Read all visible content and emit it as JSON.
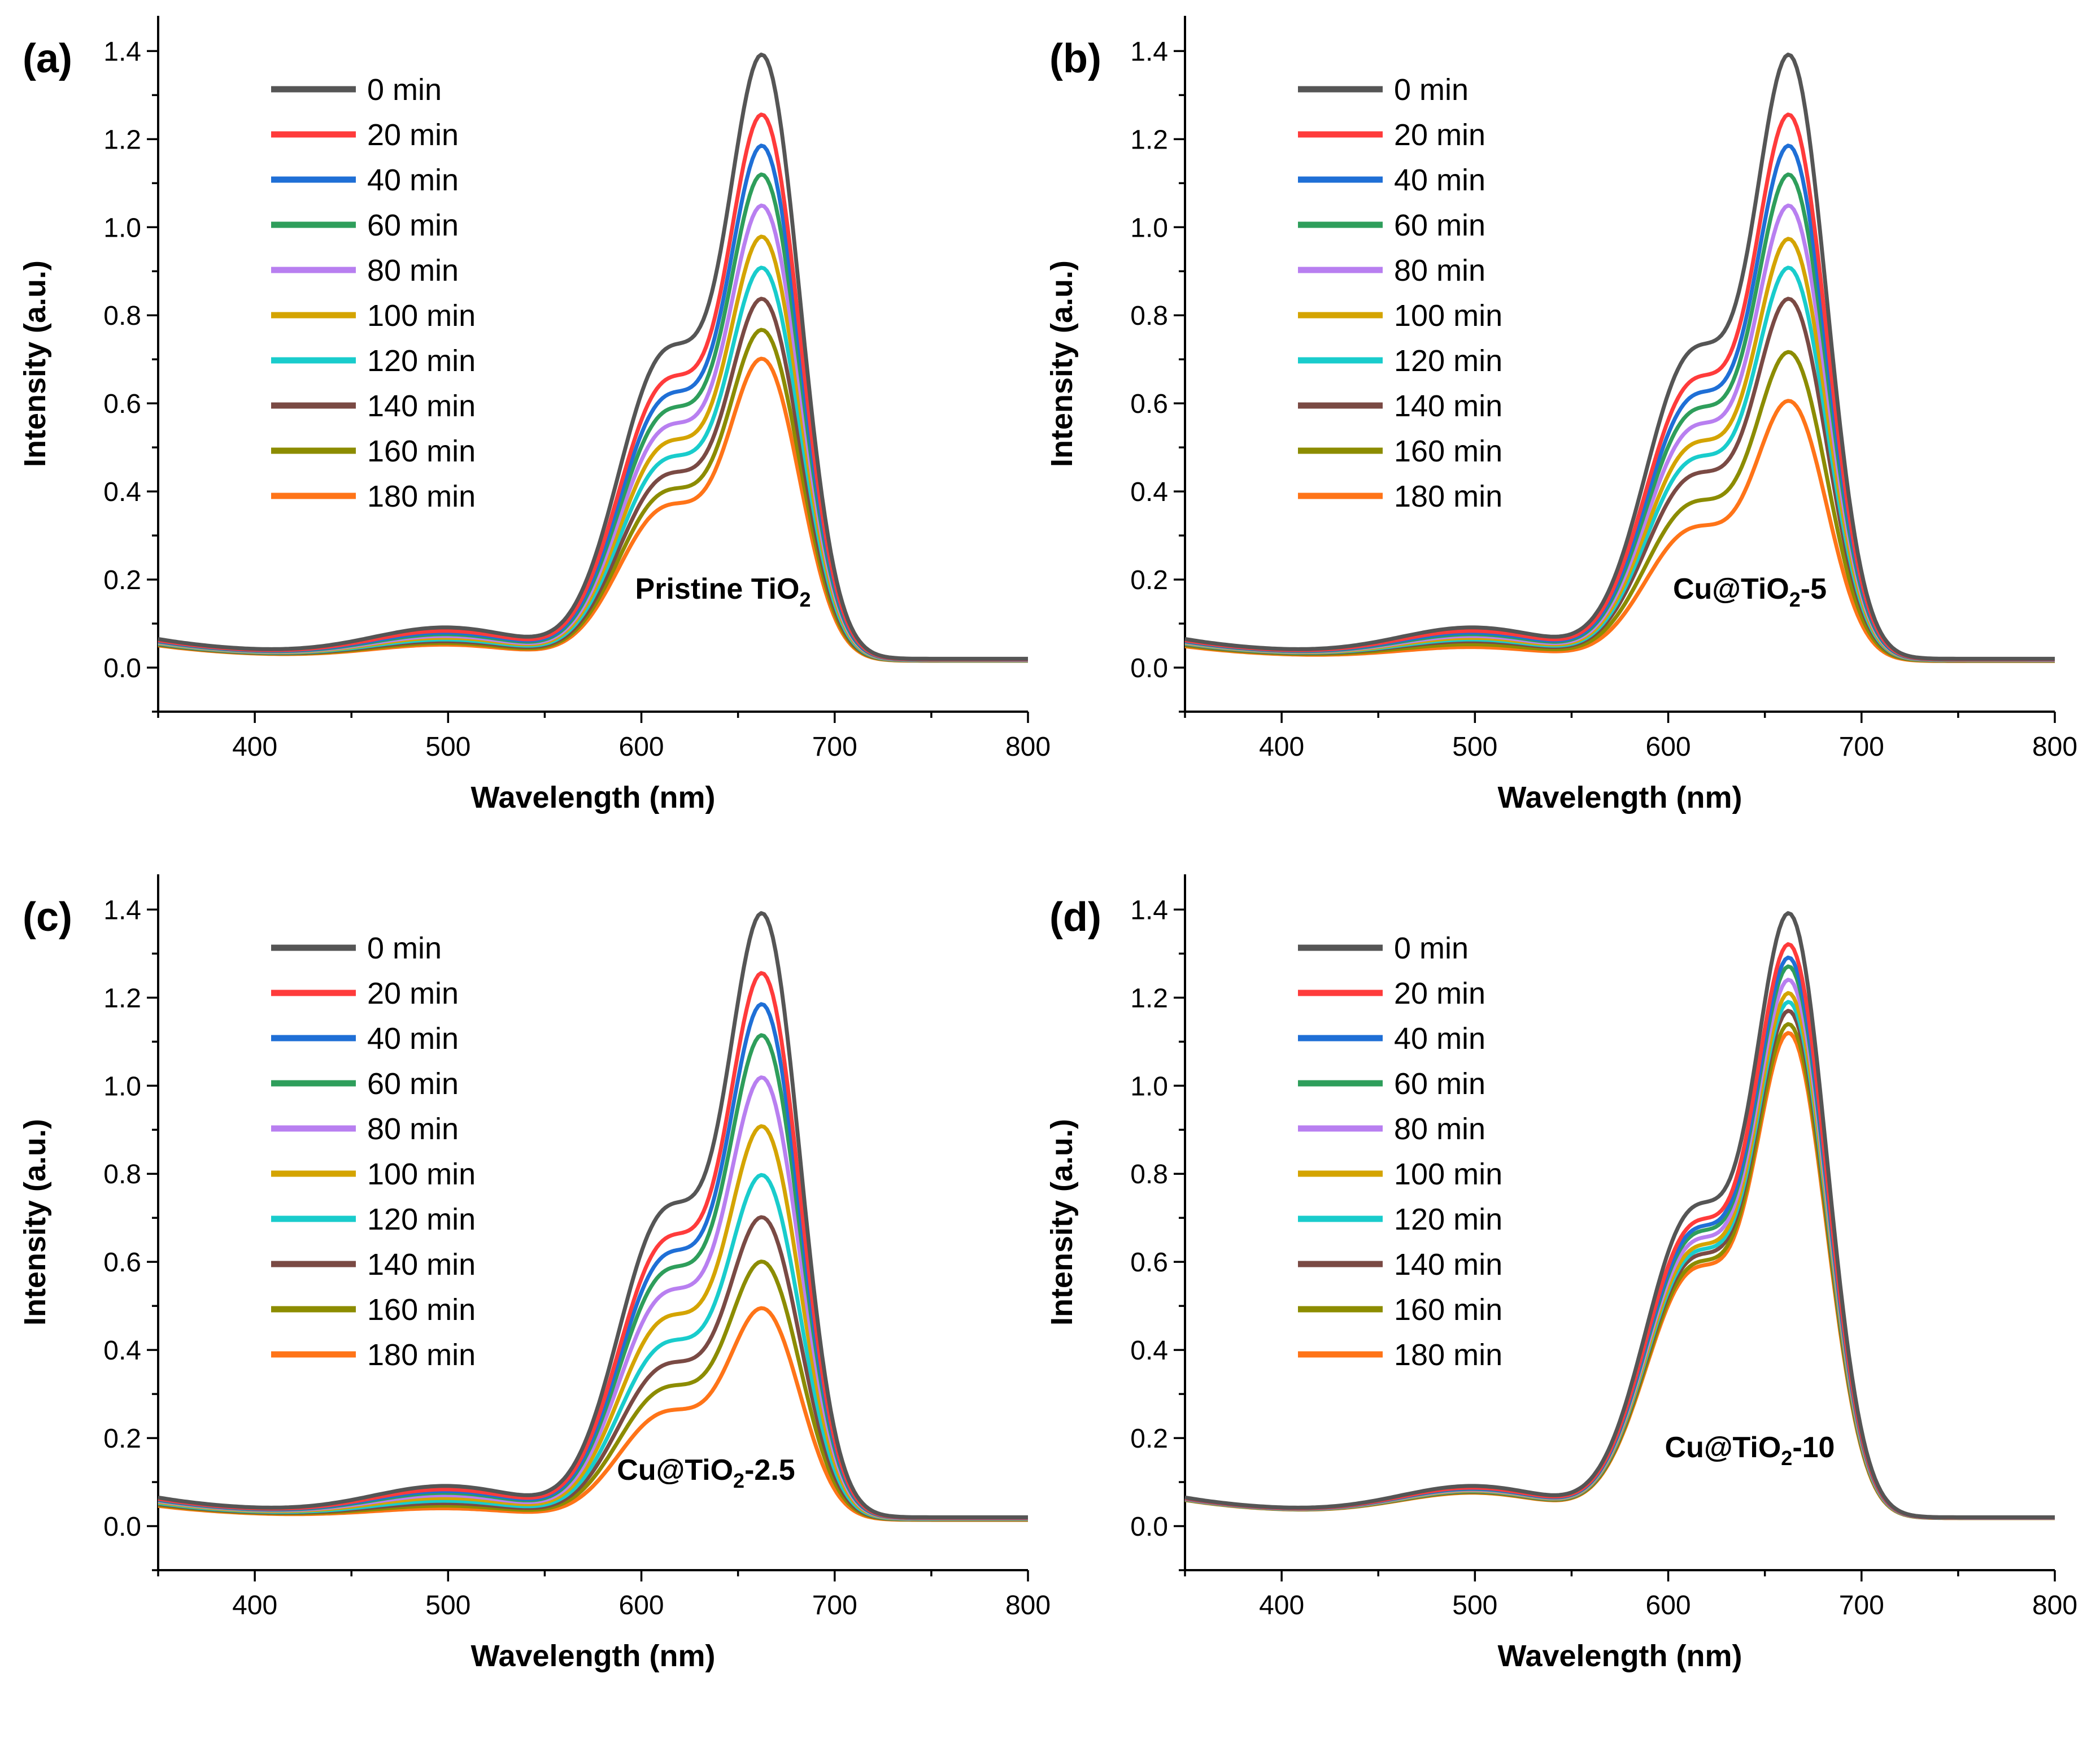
{
  "figure": {
    "x_label": "Wavelength (nm)",
    "y_label": "Intensity (a.u.)",
    "legend_entries": [
      "0 min",
      "20 min",
      "40 min",
      "60 min",
      "80 min",
      "100 min",
      "120 min",
      "140 min",
      "160 min",
      "180 min"
    ],
    "series_colors": [
      "#555555",
      "#ff3b3b",
      "#1f6fd6",
      "#2e9e5b",
      "#b87ff0",
      "#d4a400",
      "#19cccc",
      "#7a4a44",
      "#8c8c00",
      "#ff7418"
    ]
  },
  "chart_data": [
    {
      "type": "line",
      "panel_label": "(a)",
      "sample_label": {
        "main": "Pristine TiO",
        "sub": "2",
        "suffix": ""
      },
      "xlabel": "Wavelength (nm)",
      "ylabel": "Intensity (a.u.)",
      "xlim": [
        350,
        800
      ],
      "ylim": [
        -0.1,
        1.48
      ],
      "x_ticks": [
        400,
        500,
        600,
        700,
        800
      ],
      "y_ticks": [
        0.0,
        0.2,
        0.4,
        0.6,
        0.8,
        1.0,
        1.2,
        1.4
      ],
      "grid": false,
      "legend": "top-left",
      "series_peak_intensity_664nm": [
        1.37,
        1.235,
        1.165,
        1.1,
        1.03,
        0.96,
        0.89,
        0.82,
        0.75,
        0.685
      ]
    },
    {
      "type": "line",
      "panel_label": "(b)",
      "sample_label": {
        "main": "Cu@TiO",
        "sub": "2",
        "suffix": "-5"
      },
      "xlabel": "Wavelength (nm)",
      "ylabel": "Intensity (a.u.)",
      "xlim": [
        350,
        800
      ],
      "ylim": [
        -0.1,
        1.48
      ],
      "x_ticks": [
        400,
        500,
        600,
        700,
        800
      ],
      "y_ticks": [
        0.0,
        0.2,
        0.4,
        0.6,
        0.8,
        1.0,
        1.2,
        1.4
      ],
      "grid": false,
      "legend": "top-left",
      "series_peak_intensity_664nm": [
        1.37,
        1.235,
        1.165,
        1.1,
        1.03,
        0.955,
        0.89,
        0.82,
        0.7,
        0.59
      ]
    },
    {
      "type": "line",
      "panel_label": "(c)",
      "sample_label": {
        "main": "Cu@TiO",
        "sub": "2",
        "suffix": "-2.5"
      },
      "xlabel": "Wavelength (nm)",
      "ylabel": "Intensity (a.u.)",
      "xlim": [
        350,
        800
      ],
      "ylim": [
        -0.1,
        1.48
      ],
      "x_ticks": [
        400,
        500,
        600,
        700,
        800
      ],
      "y_ticks": [
        0.0,
        0.2,
        0.4,
        0.6,
        0.8,
        1.0,
        1.2,
        1.4
      ],
      "grid": false,
      "legend": "top-left",
      "series_peak_intensity_664nm": [
        1.37,
        1.235,
        1.165,
        1.095,
        1.0,
        0.89,
        0.78,
        0.685,
        0.585,
        0.48
      ]
    },
    {
      "type": "line",
      "panel_label": "(d)",
      "sample_label": {
        "main": "Cu@TiO",
        "sub": "2",
        "suffix": "-10"
      },
      "xlabel": "Wavelength (nm)",
      "ylabel": "Intensity (a.u.)",
      "xlim": [
        350,
        800
      ],
      "ylim": [
        -0.1,
        1.48
      ],
      "x_ticks": [
        400,
        500,
        600,
        700,
        800
      ],
      "y_ticks": [
        0.0,
        0.2,
        0.4,
        0.6,
        0.8,
        1.0,
        1.2,
        1.4
      ],
      "grid": false,
      "legend": "top-left",
      "series_peak_intensity_664nm": [
        1.37,
        1.3,
        1.27,
        1.25,
        1.22,
        1.19,
        1.17,
        1.15,
        1.12,
        1.1
      ]
    }
  ]
}
